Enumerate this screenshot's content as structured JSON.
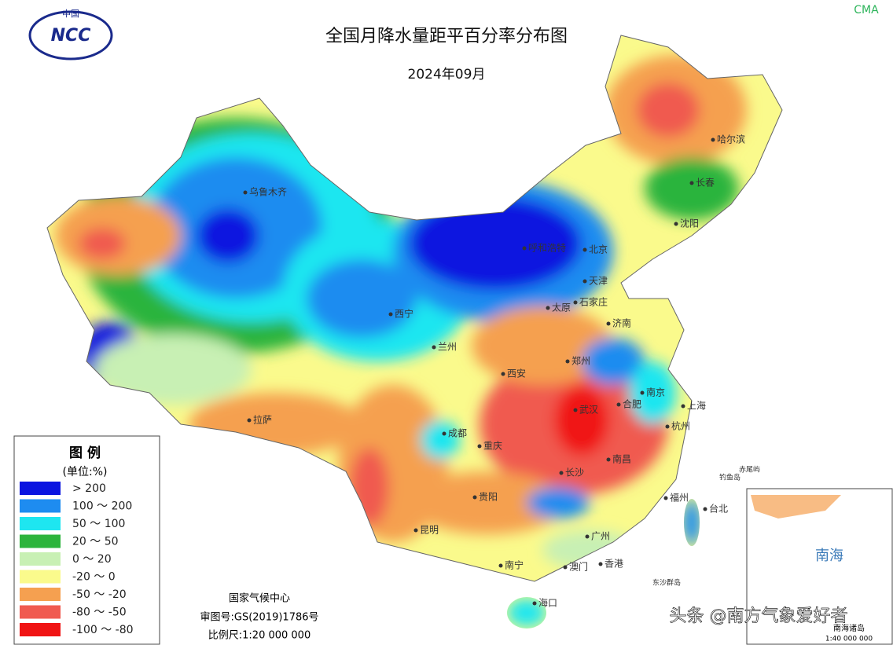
{
  "header": {
    "brand": "CMA",
    "logo_top": "中国",
    "logo_text": "NCC",
    "title": "全国月降水量距平百分率分布图",
    "subtitle": "2024年09月"
  },
  "legend": {
    "title": "图 例",
    "unit": "(单位:%)",
    "items": [
      {
        "label": "> 200",
        "color": "#0a14e0"
      },
      {
        "label": "100 ～ 200",
        "color": "#1e8cf0"
      },
      {
        "label": "50 ～ 100",
        "color": "#1ee6f0"
      },
      {
        "label": "20 ～ 50",
        "color": "#2cb43c"
      },
      {
        "label": "0 ～ 20",
        "color": "#c8f0b4"
      },
      {
        "label": "-20 ～ 0",
        "color": "#fafa8c"
      },
      {
        "label": "-50 ～ -20",
        "color": "#f5a050"
      },
      {
        "label": "-80 ～ -50",
        "color": "#f05a50"
      },
      {
        "label": "-100 ～ -80",
        "color": "#f01414"
      }
    ]
  },
  "footer": {
    "agency": "国家气候中心",
    "approval": "审图号:GS(2019)1786号",
    "scale": "比例尺:1:20 000 000"
  },
  "cities": [
    "乌鲁木齐",
    "呼和浩特",
    "北京",
    "天津",
    "太原",
    "石家庄",
    "济南",
    "西宁",
    "兰州",
    "西安",
    "郑州",
    "南京",
    "合肥",
    "上海",
    "杭州",
    "武汉",
    "拉萨",
    "成都",
    "重庆",
    "长沙",
    "南昌",
    "贵阳",
    "昆明",
    "福州",
    "台北",
    "广州",
    "南宁",
    "澳门",
    "香港",
    "海口",
    "哈尔滨",
    "长春",
    "沈阳"
  ],
  "places": [
    "东沙群岛",
    "钓鱼岛",
    "赤尾屿"
  ],
  "inset": {
    "sea": "南海",
    "title": "南海诸岛",
    "scale": "1:40 000 000"
  },
  "watermark": "头条 @南方气象爱好者"
}
